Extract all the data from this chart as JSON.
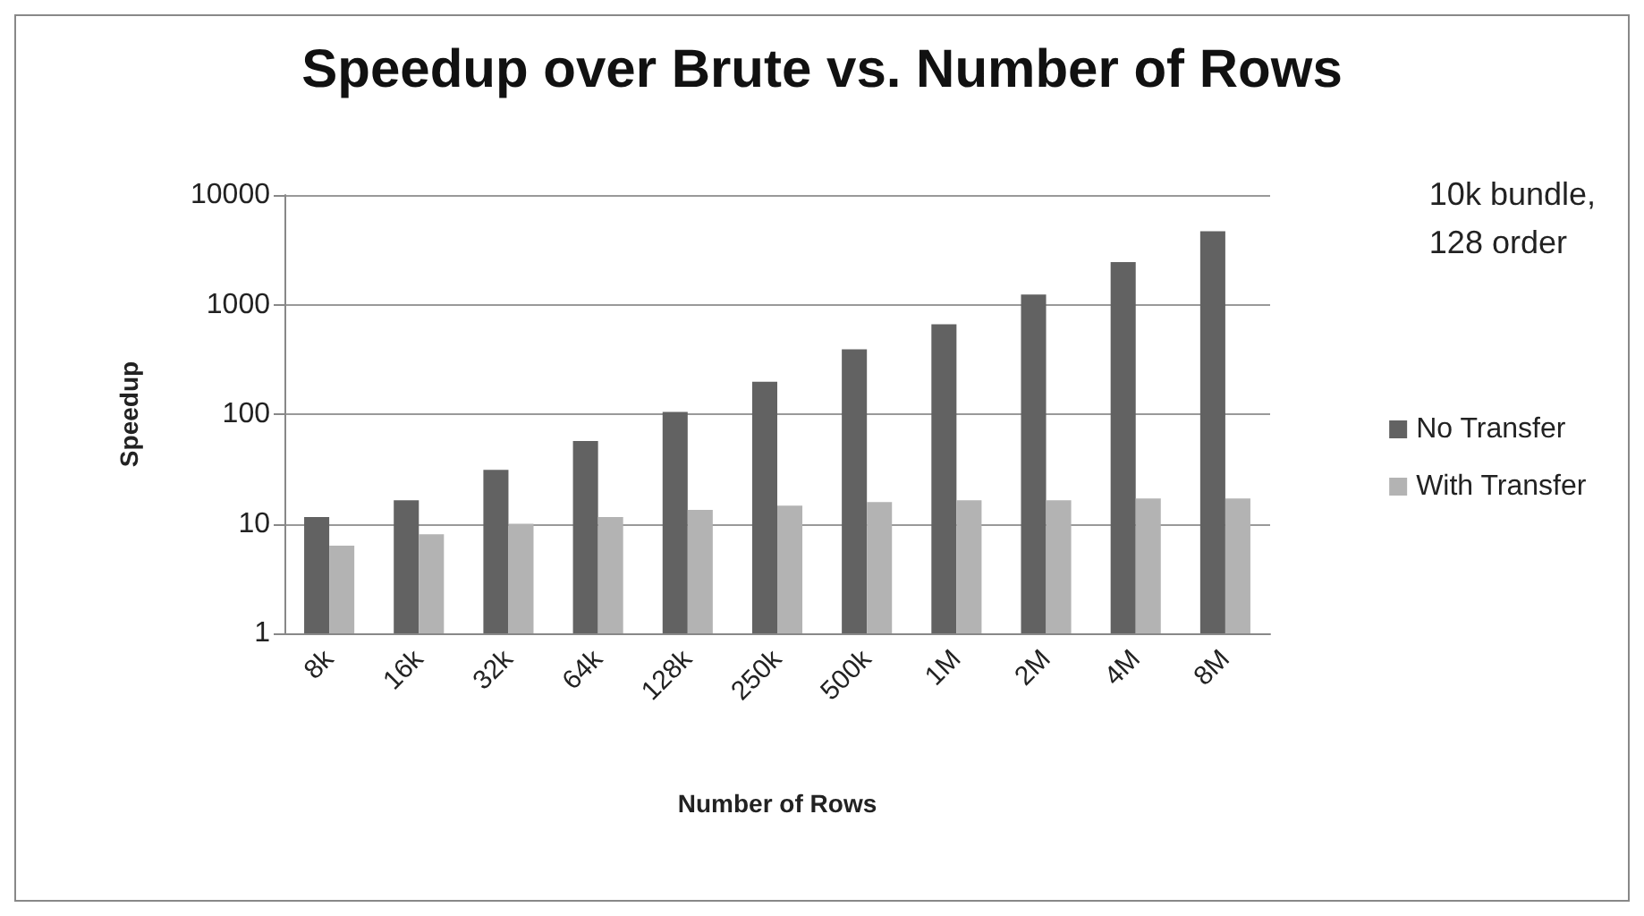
{
  "chart_data": {
    "type": "bar",
    "title": "Speedup over Brute vs. Number of Rows",
    "xlabel": "Number of Rows",
    "ylabel": "Speedup",
    "annotations": [
      "10k bundle,\n128 order"
    ],
    "categories": [
      "8k",
      "16k",
      "32k",
      "64k",
      "128k",
      "250k",
      "500k",
      "1M",
      "2M",
      "4M",
      "8M"
    ],
    "series": [
      {
        "name": "No Transfer",
        "color": "#626262",
        "values": [
          11.5,
          16.4,
          31,
          57,
          105,
          198,
          391,
          662,
          1235,
          2445,
          4660
        ]
      },
      {
        "name": "With Transfer",
        "color": "#b3b3b3",
        "values": [
          6.3,
          8.0,
          10,
          11.5,
          13.4,
          14.6,
          15.8,
          16.4,
          16.4,
          17,
          17
        ]
      }
    ],
    "log": "y",
    "ylim": [
      1,
      10000
    ],
    "yticks": [
      1,
      10,
      100,
      1000,
      10000
    ],
    "grid": "y",
    "legend": "right"
  }
}
